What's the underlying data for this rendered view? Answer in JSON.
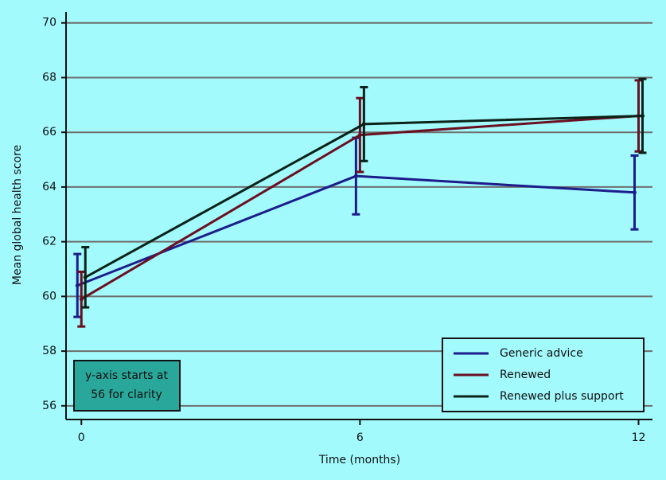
{
  "chart_data": {
    "type": "line",
    "x_label": "Time (months)",
    "y_label": "Mean global health score",
    "x": [
      0,
      6,
      12
    ],
    "xlim": [
      -0.33,
      12.3
    ],
    "xticks": [
      0,
      6,
      12
    ],
    "ylim": [
      55.5,
      70.4
    ],
    "yticks": [
      56,
      58,
      60,
      62,
      64,
      66,
      68,
      70
    ],
    "grid": true,
    "legend": "lower right",
    "annotation": [
      "y-axis starts at",
      "56 for clarity"
    ],
    "series": [
      {
        "name": "Generic advice",
        "color": "#1c1c8a",
        "values": [
          60.4,
          64.4,
          63.8
        ],
        "errors": [
          1.15,
          1.4,
          1.35
        ]
      },
      {
        "name": "Renewed",
        "color": "#6a1020",
        "values": [
          59.9,
          65.9,
          66.6
        ],
        "errors": [
          1.0,
          1.35,
          1.3
        ]
      },
      {
        "name": "Renewed plus support",
        "color": "#0a2218",
        "values": [
          60.7,
          66.3,
          66.6
        ],
        "errors": [
          1.1,
          1.35,
          1.35
        ]
      }
    ]
  }
}
